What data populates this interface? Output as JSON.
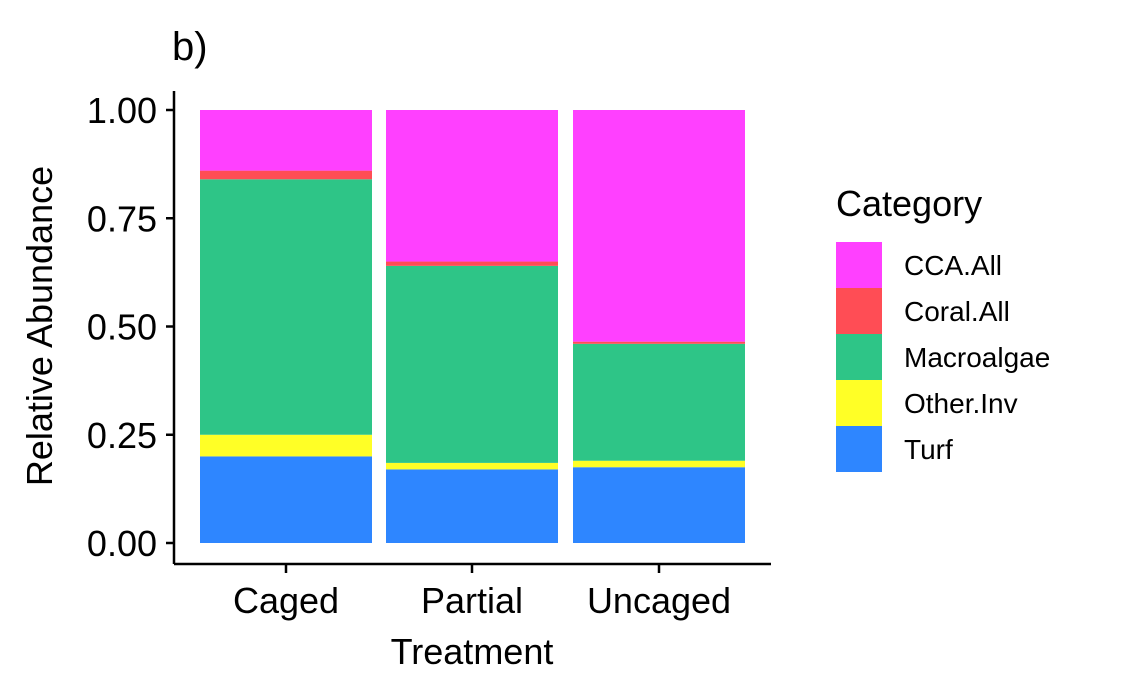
{
  "chart_data": {
    "type": "bar",
    "stacked": true,
    "title": "b)",
    "xlabel": "Treatment",
    "ylabel": "Relative Abundance",
    "ylim": [
      0,
      1
    ],
    "yticks": [
      "0.00",
      "0.25",
      "0.50",
      "0.75",
      "1.00"
    ],
    "grid": false,
    "categories": [
      "Caged",
      "Partial",
      "Uncaged"
    ],
    "series": [
      {
        "name": "Turf",
        "color": "#2E86FF",
        "values": [
          0.2,
          0.17,
          0.175
        ]
      },
      {
        "name": "Other.Inv",
        "color": "#FFFF26",
        "values": [
          0.05,
          0.015,
          0.015
        ]
      },
      {
        "name": "Macroalgae",
        "color": "#2EC587",
        "values": [
          0.59,
          0.455,
          0.27
        ]
      },
      {
        "name": "Coral.All",
        "color": "#FF4D55",
        "values": [
          0.02,
          0.01,
          0.005
        ]
      },
      {
        "name": "CCA.All",
        "color": "#FF40FF",
        "values": [
          0.14,
          0.35,
          0.535
        ]
      }
    ],
    "legend": {
      "title": "Category",
      "position": "right",
      "order": [
        "CCA.All",
        "Coral.All",
        "Macroalgae",
        "Other.Inv",
        "Turf"
      ]
    }
  }
}
